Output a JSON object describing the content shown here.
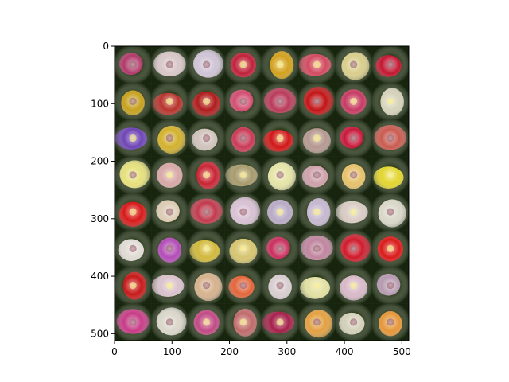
{
  "figure": {
    "kind": "image-grid",
    "rows": 8,
    "cols": 8,
    "x_ticks": [
      "0",
      "100",
      "200",
      "300",
      "400",
      "500"
    ],
    "y_ticks": [
      "0",
      "100",
      "200",
      "300",
      "400",
      "500"
    ],
    "tiles": [
      [
        "#b03a6a",
        "#d8c6c8",
        "#cfc4d6",
        "#c0213a",
        "#d2a01b",
        "#d24a60",
        "#d9cd8a",
        "#c31731"
      ],
      [
        "#c6a11e",
        "#b8322c",
        "#b01b1b",
        "#d24c70",
        "#b93a5a",
        "#c21416",
        "#c63a62",
        "#d5d2b9"
      ],
      [
        "#6e45b5",
        "#d3b02c",
        "#cfc2bb",
        "#c93a57",
        "#d11616",
        "#b59890",
        "#c8183a",
        "#c95a4f"
      ],
      [
        "#e6e07a",
        "#d6a7a6",
        "#c92434",
        "#a79a6c",
        "#e5e4a6",
        "#cda0aa",
        "#e6c06a",
        "#e2d52d"
      ],
      [
        "#d81818",
        "#dccbb3",
        "#c13a4d",
        "#d7c0d3",
        "#b8aac6",
        "#c5b7cf",
        "#d8cbc4",
        "#d9d7c8"
      ],
      [
        "#e0dad4",
        "#b24cb6",
        "#d1b83b",
        "#d6c46d",
        "#c8305e",
        "#c0859f",
        "#cf1a2b",
        "#da1a1a"
      ],
      [
        "#c71818",
        "#d9c1cc",
        "#d6b18c",
        "#e3643a",
        "#d7cccf",
        "#e2e0a0",
        "#d8b8c8",
        "#b59ab0"
      ],
      [
        "#c73b86",
        "#dad6ca",
        "#c14a84",
        "#c06a6a",
        "#a5204a",
        "#e3a040",
        "#d3d0b8",
        "#e59638"
      ]
    ],
    "colors": {
      "axis": "#000000",
      "background": "#ffffff"
    }
  }
}
